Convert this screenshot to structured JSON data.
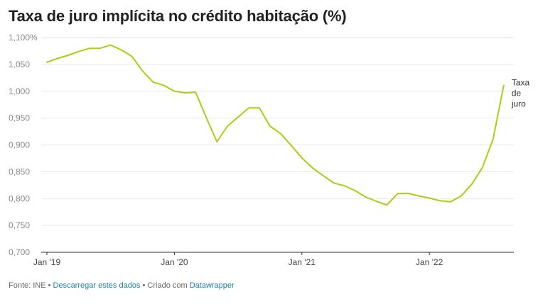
{
  "title": "Taxa de juro implícita no crédito habitação (%)",
  "footer": {
    "source": "Fonte: INE",
    "sep": " • ",
    "download": "Descarregar estes dados",
    "created_prefix": "Criado com ",
    "tool": "Datawrapper"
  },
  "colors": {
    "line": "#a7cf13",
    "grid": "#e6e6e6",
    "axis": "#333333"
  },
  "chart_data": {
    "type": "line",
    "title": "Taxa de juro implícita no crédito habitação (%)",
    "xlabel": "",
    "ylabel": "",
    "ylim": [
      0.7,
      1.1
    ],
    "y_ticks": [
      0.7,
      0.75,
      0.8,
      0.85,
      0.9,
      0.95,
      1.0,
      1.05,
      1.1
    ],
    "y_tick_labels": [
      "0,700",
      "0,750",
      "0,800",
      "0,850",
      "0,900",
      "0,950",
      "1,000",
      "1,050",
      "1,100%"
    ],
    "x_ticks": [
      "2019-01",
      "2020-01",
      "2021-01",
      "2022-01"
    ],
    "x_tick_labels": [
      "Jan '19",
      "Jan '20",
      "Jan '21",
      "Jan '22"
    ],
    "grid": true,
    "series": [
      {
        "name": "Taxa de juro",
        "label_lines": [
          "Taxa",
          "de",
          "juro"
        ],
        "x": [
          "2019-01",
          "2019-02",
          "2019-03",
          "2019-04",
          "2019-05",
          "2019-06",
          "2019-07",
          "2019-08",
          "2019-09",
          "2019-10",
          "2019-11",
          "2019-12",
          "2020-01",
          "2020-02",
          "2020-03",
          "2020-04",
          "2020-05",
          "2020-06",
          "2020-07",
          "2020-08",
          "2020-09",
          "2020-10",
          "2020-11",
          "2020-12",
          "2021-01",
          "2021-02",
          "2021-03",
          "2021-04",
          "2021-05",
          "2021-06",
          "2021-07",
          "2021-08",
          "2021-09",
          "2021-10",
          "2021-11",
          "2021-12",
          "2022-01",
          "2022-02",
          "2022-03",
          "2022-04",
          "2022-05",
          "2022-06",
          "2022-07",
          "2022-08"
        ],
        "values": [
          1.054,
          1.061,
          1.067,
          1.074,
          1.08,
          1.08,
          1.086,
          1.077,
          1.065,
          1.038,
          1.017,
          1.011,
          1.0,
          0.997,
          0.998,
          0.951,
          0.906,
          0.935,
          0.952,
          0.969,
          0.969,
          0.935,
          0.921,
          0.899,
          0.876,
          0.857,
          0.843,
          0.829,
          0.824,
          0.815,
          0.803,
          0.795,
          0.788,
          0.809,
          0.81,
          0.805,
          0.801,
          0.796,
          0.794,
          0.805,
          0.827,
          0.858,
          0.911,
          1.011
        ]
      }
    ]
  }
}
